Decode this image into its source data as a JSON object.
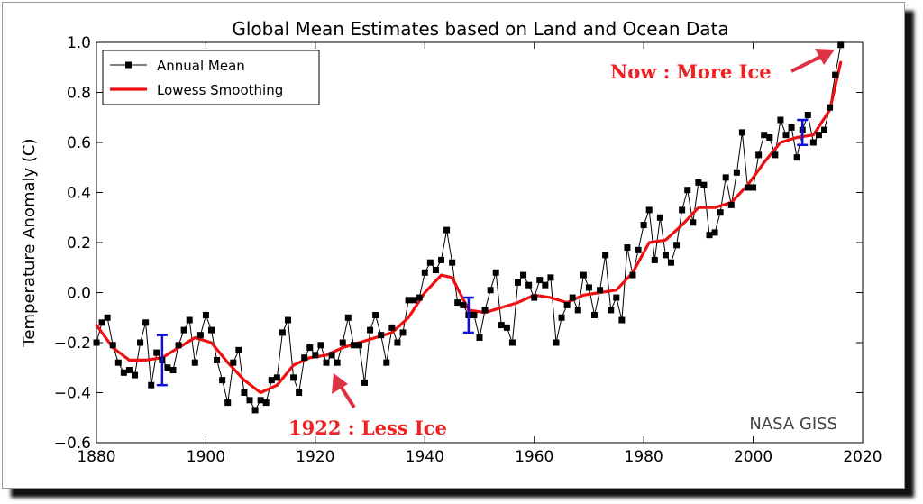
{
  "chart_data": {
    "type": "line",
    "title": "Global Mean Estimates based on Land and Ocean Data",
    "xlabel": "",
    "ylabel": "Temperature Anomaly (C)",
    "xlim": [
      1880,
      2020
    ],
    "ylim": [
      -0.6,
      1.0
    ],
    "xticks": [
      "1880",
      "1900",
      "1920",
      "1940",
      "1960",
      "1980",
      "2000",
      "2020"
    ],
    "yticks": [
      "−0.6",
      "−0.4",
      "−0.2",
      "0.0",
      "0.2",
      "0.4",
      "0.6",
      "0.8",
      "1.0"
    ],
    "grid": false,
    "legend_position": "top-left",
    "series": [
      {
        "name": "Annual Mean",
        "color": "#000000",
        "marker": "square",
        "x": [
          1880,
          1881,
          1882,
          1883,
          1884,
          1885,
          1886,
          1887,
          1888,
          1889,
          1890,
          1891,
          1892,
          1893,
          1894,
          1895,
          1896,
          1897,
          1898,
          1899,
          1900,
          1901,
          1902,
          1903,
          1904,
          1905,
          1906,
          1907,
          1908,
          1909,
          1910,
          1911,
          1912,
          1913,
          1914,
          1915,
          1916,
          1917,
          1918,
          1919,
          1920,
          1921,
          1922,
          1923,
          1924,
          1925,
          1926,
          1927,
          1928,
          1929,
          1930,
          1931,
          1932,
          1933,
          1934,
          1935,
          1936,
          1937,
          1938,
          1939,
          1940,
          1941,
          1942,
          1943,
          1944,
          1945,
          1946,
          1947,
          1948,
          1949,
          1950,
          1951,
          1952,
          1953,
          1954,
          1955,
          1956,
          1957,
          1958,
          1959,
          1960,
          1961,
          1962,
          1963,
          1964,
          1965,
          1966,
          1967,
          1968,
          1969,
          1970,
          1971,
          1972,
          1973,
          1974,
          1975,
          1976,
          1977,
          1978,
          1979,
          1980,
          1981,
          1982,
          1983,
          1984,
          1985,
          1986,
          1987,
          1988,
          1989,
          1990,
          1991,
          1992,
          1993,
          1994,
          1995,
          1996,
          1997,
          1998,
          1999,
          2000,
          2001,
          2002,
          2003,
          2004,
          2005,
          2006,
          2007,
          2008,
          2009,
          2010,
          2011,
          2012,
          2013,
          2014,
          2015,
          2016
        ],
        "y": [
          -0.2,
          -0.12,
          -0.1,
          -0.21,
          -0.28,
          -0.32,
          -0.31,
          -0.33,
          -0.2,
          -0.12,
          -0.37,
          -0.24,
          -0.27,
          -0.3,
          -0.31,
          -0.21,
          -0.15,
          -0.11,
          -0.28,
          -0.17,
          -0.09,
          -0.15,
          -0.27,
          -0.35,
          -0.44,
          -0.28,
          -0.23,
          -0.4,
          -0.43,
          -0.47,
          -0.43,
          -0.44,
          -0.35,
          -0.34,
          -0.16,
          -0.11,
          -0.34,
          -0.4,
          -0.26,
          -0.22,
          -0.25,
          -0.21,
          -0.28,
          -0.25,
          -0.28,
          -0.2,
          -0.1,
          -0.21,
          -0.21,
          -0.36,
          -0.15,
          -0.09,
          -0.17,
          -0.28,
          -0.14,
          -0.2,
          -0.16,
          -0.03,
          -0.03,
          -0.02,
          0.08,
          0.12,
          0.09,
          0.13,
          0.25,
          0.12,
          -0.04,
          -0.05,
          -0.09,
          -0.09,
          -0.18,
          -0.07,
          0.01,
          0.08,
          -0.13,
          -0.14,
          -0.2,
          0.04,
          0.07,
          0.03,
          -0.02,
          0.05,
          0.03,
          0.06,
          -0.2,
          -0.1,
          -0.05,
          -0.02,
          -0.07,
          0.07,
          0.02,
          -0.09,
          0.01,
          0.15,
          -0.07,
          -0.02,
          -0.11,
          0.18,
          0.07,
          0.17,
          0.27,
          0.33,
          0.13,
          0.3,
          0.15,
          0.12,
          0.19,
          0.33,
          0.41,
          0.28,
          0.44,
          0.43,
          0.23,
          0.24,
          0.32,
          0.46,
          0.35,
          0.48,
          0.64,
          0.42,
          0.42,
          0.55,
          0.63,
          0.62,
          0.55,
          0.69,
          0.63,
          0.66,
          0.54,
          0.65,
          0.71,
          0.6,
          0.63,
          0.65,
          0.74,
          0.87,
          0.99
        ]
      },
      {
        "name": "Lowess Smoothing",
        "color": "#ee1111",
        "x": [
          1880,
          1883,
          1886,
          1889,
          1892,
          1895,
          1898,
          1901,
          1904,
          1907,
          1910,
          1913,
          1916,
          1919,
          1922,
          1925,
          1928,
          1931,
          1934,
          1937,
          1940,
          1943,
          1945,
          1948,
          1951,
          1954,
          1957,
          1960,
          1963,
          1966,
          1969,
          1972,
          1975,
          1978,
          1981,
          1984,
          1987,
          1990,
          1993,
          1996,
          1999,
          2002,
          2005,
          2008,
          2011,
          2014,
          2016
        ],
        "y": [
          -0.13,
          -0.22,
          -0.27,
          -0.27,
          -0.26,
          -0.22,
          -0.18,
          -0.2,
          -0.28,
          -0.35,
          -0.4,
          -0.37,
          -0.29,
          -0.26,
          -0.25,
          -0.22,
          -0.2,
          -0.18,
          -0.16,
          -0.1,
          0.0,
          0.07,
          0.06,
          -0.07,
          -0.08,
          -0.06,
          -0.04,
          -0.01,
          -0.02,
          -0.04,
          -0.01,
          0.0,
          0.01,
          0.08,
          0.2,
          0.21,
          0.27,
          0.34,
          0.34,
          0.36,
          0.43,
          0.52,
          0.6,
          0.62,
          0.63,
          0.73,
          0.92
        ]
      }
    ],
    "error_bars": [
      {
        "x": 1892,
        "low": -0.37,
        "high": -0.17
      },
      {
        "x": 1948,
        "low": -0.16,
        "high": -0.02
      },
      {
        "x": 2009,
        "low": 0.59,
        "high": 0.69
      }
    ],
    "annotations": [
      {
        "text": "Now : More Ice",
        "color": "#ee2222"
      },
      {
        "text": "1922 : Less Ice",
        "color": "#ee2222"
      }
    ],
    "watermark": "NASA GISS"
  }
}
